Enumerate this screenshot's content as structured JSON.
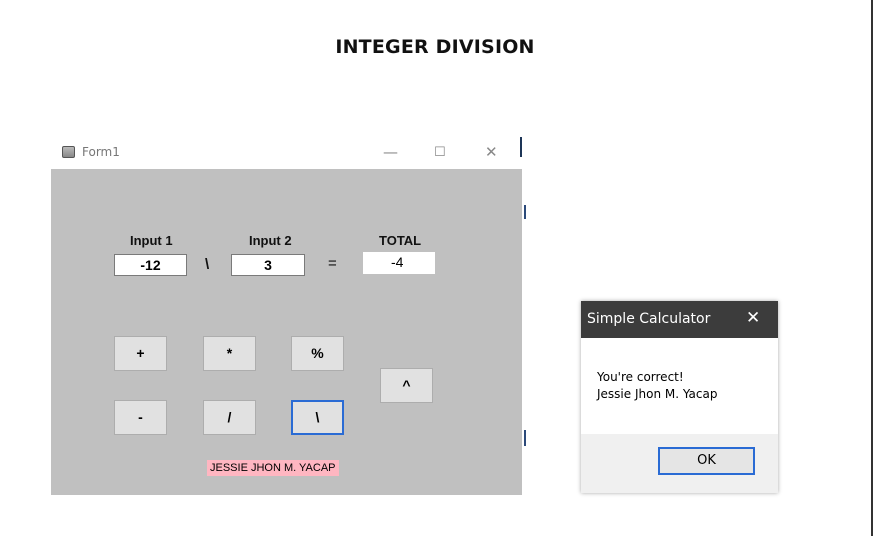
{
  "page": {
    "title": "INTEGER DIVISION"
  },
  "form": {
    "title": "Form1",
    "controls": {
      "minimize": "—",
      "maximize": "☐",
      "close": "✕"
    },
    "labels": {
      "input1": "Input 1",
      "input2": "Input 2",
      "total": "TOTAL"
    },
    "inputs": {
      "input1_value": "-12",
      "input2_value": "3",
      "total_value": "-4"
    },
    "operator_symbol": "\\",
    "equals_symbol": "=",
    "buttons": {
      "add": "+",
      "multiply": "*",
      "modulo": "%",
      "subtract": "-",
      "divide": "/",
      "int_divide": "\\",
      "power": "^"
    },
    "name_label": "JESSIE JHON M. YACAP"
  },
  "message_box": {
    "title": "Simple Calculator",
    "close": "✕",
    "line1": "You're correct!",
    "line2": "Jessie Jhon M. Yacap",
    "ok_label": "OK"
  }
}
